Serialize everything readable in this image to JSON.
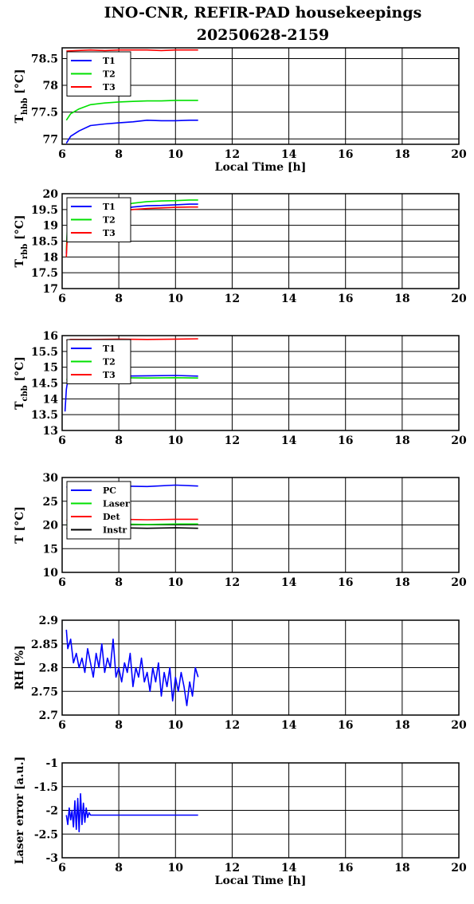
{
  "figure": {
    "title_line1": "INO-CNR, REFIR-PAD housekeepings",
    "title_line2": "20250628-2159"
  },
  "colors": {
    "blue": "#0000ff",
    "green": "#00e000",
    "red": "#ff0000",
    "black": "#000000"
  },
  "chart_data": [
    {
      "id": "thbb",
      "type": "line",
      "xlim": [
        6,
        20
      ],
      "xticks": [
        6,
        8,
        10,
        12,
        14,
        16,
        18,
        20
      ],
      "xlabel": "Local Time [h]",
      "ylabel": "T",
      "ylabel_sub": "hbb",
      "ylabel_unit": "[°C]",
      "ylim": [
        76.9,
        78.7
      ],
      "yticks": [
        77,
        77.5,
        78,
        78.5
      ],
      "grid": true,
      "legend": "top-left",
      "series": [
        {
          "name": "T1",
          "color": "#0000ff",
          "x": [
            6.15,
            6.3,
            6.6,
            7.0,
            7.5,
            8.0,
            8.5,
            9.0,
            9.5,
            10.0,
            10.5,
            10.8
          ],
          "y": [
            76.92,
            77.05,
            77.15,
            77.25,
            77.28,
            77.3,
            77.32,
            77.35,
            77.34,
            77.34,
            77.35,
            77.35
          ]
        },
        {
          "name": "T2",
          "color": "#00e000",
          "x": [
            6.15,
            6.3,
            6.6,
            7.0,
            7.5,
            8.0,
            8.5,
            9.0,
            9.5,
            10.0,
            10.5,
            10.8
          ],
          "y": [
            77.35,
            77.47,
            77.56,
            77.64,
            77.67,
            77.69,
            77.7,
            77.71,
            77.71,
            77.72,
            77.72,
            77.72
          ]
        },
        {
          "name": "T3",
          "color": "#ff0000",
          "x": [
            6.15,
            6.5,
            7.0,
            7.5,
            8.0,
            8.5,
            9.0,
            9.5,
            10.0,
            10.5,
            10.8
          ],
          "y": [
            78.64,
            78.65,
            78.66,
            78.65,
            78.66,
            78.66,
            78.66,
            78.65,
            78.66,
            78.66,
            78.66
          ]
        }
      ]
    },
    {
      "id": "trbb",
      "type": "line",
      "xlim": [
        6,
        20
      ],
      "xticks": [
        6,
        8,
        10,
        12,
        14,
        16,
        18,
        20
      ],
      "xlabel": "",
      "ylabel": "T",
      "ylabel_sub": "rbb",
      "ylabel_unit": "[°C]",
      "ylim": [
        17,
        20
      ],
      "yticks": [
        17,
        17.5,
        18,
        18.5,
        19,
        19.5,
        20
      ],
      "grid": true,
      "legend": "top-left",
      "series": [
        {
          "name": "T1",
          "color": "#0000ff",
          "x": [
            6.15,
            6.2,
            6.5,
            7.0,
            7.5,
            8.0,
            8.5,
            9.0,
            9.5,
            10.0,
            10.5,
            10.8
          ],
          "y": [
            18.1,
            19.2,
            19.3,
            19.4,
            19.45,
            19.5,
            19.58,
            19.62,
            19.63,
            19.65,
            19.67,
            19.67
          ]
        },
        {
          "name": "T2",
          "color": "#00e000",
          "x": [
            6.15,
            6.2,
            6.5,
            7.0,
            7.5,
            8.0,
            8.5,
            9.0,
            9.5,
            10.0,
            10.5,
            10.8
          ],
          "y": [
            18.2,
            19.3,
            19.4,
            19.5,
            19.55,
            19.6,
            19.7,
            19.75,
            19.77,
            19.78,
            19.8,
            19.8
          ]
        },
        {
          "name": "T3",
          "color": "#ff0000",
          "x": [
            6.15,
            6.2,
            6.5,
            7.0,
            7.5,
            8.0,
            8.5,
            9.0,
            9.5,
            10.0,
            10.5,
            10.8
          ],
          "y": [
            18.0,
            19.1,
            19.25,
            19.35,
            19.4,
            19.45,
            19.5,
            19.53,
            19.55,
            19.57,
            19.58,
            19.58
          ]
        }
      ]
    },
    {
      "id": "tcbb",
      "type": "line",
      "xlim": [
        6,
        20
      ],
      "xticks": [
        6,
        8,
        10,
        12,
        14,
        16,
        18,
        20
      ],
      "xlabel": "",
      "ylabel": "T",
      "ylabel_sub": "cbb",
      "ylabel_unit": "[°C]",
      "ylim": [
        13,
        16
      ],
      "yticks": [
        13,
        13.5,
        14,
        14.5,
        15,
        15.5,
        16
      ],
      "grid": true,
      "legend": "top-left",
      "series": [
        {
          "name": "T1",
          "color": "#0000ff",
          "x": [
            6.1,
            6.15,
            6.2,
            6.3,
            7.0,
            8.0,
            9.0,
            10.0,
            10.8
          ],
          "y": [
            13.6,
            14.3,
            14.6,
            14.7,
            14.72,
            14.72,
            14.73,
            14.74,
            14.72
          ]
        },
        {
          "name": "T2",
          "color": "#00e000",
          "x": [
            6.15,
            6.3,
            7.0,
            8.0,
            9.0,
            10.0,
            10.8
          ],
          "y": [
            14.6,
            14.68,
            14.68,
            14.67,
            14.66,
            14.67,
            14.66
          ]
        },
        {
          "name": "T3",
          "color": "#ff0000",
          "x": [
            6.15,
            6.3,
            7.0,
            8.0,
            9.0,
            10.0,
            10.8
          ],
          "y": [
            15.85,
            15.88,
            15.88,
            15.89,
            15.88,
            15.89,
            15.9
          ]
        }
      ]
    },
    {
      "id": "tinst",
      "type": "line",
      "xlim": [
        6,
        20
      ],
      "xticks": [
        6,
        8,
        10,
        12,
        14,
        16,
        18,
        20
      ],
      "xlabel": "",
      "ylabel": "T [°C]",
      "ylabel_sub": "",
      "ylabel_unit": "",
      "ylim": [
        10,
        30
      ],
      "yticks": [
        10,
        15,
        20,
        25,
        30
      ],
      "grid": true,
      "legend": "top-left",
      "series": [
        {
          "name": "PC",
          "color": "#0000ff",
          "x": [
            6.15,
            7.0,
            8.0,
            9.0,
            10.0,
            10.8
          ],
          "y": [
            28.0,
            28.2,
            28.2,
            28.1,
            28.4,
            28.2
          ]
        },
        {
          "name": "Laser",
          "color": "#00e000",
          "x": [
            6.15,
            7.0,
            8.0,
            9.0,
            10.0,
            10.8
          ],
          "y": [
            20.0,
            20.1,
            20.2,
            20.1,
            20.2,
            20.2
          ]
        },
        {
          "name": "Det",
          "color": "#ff0000",
          "x": [
            6.15,
            7.0,
            8.0,
            9.0,
            10.0,
            10.8
          ],
          "y": [
            21.0,
            21.1,
            21.2,
            21.1,
            21.2,
            21.2
          ]
        },
        {
          "name": "Instr",
          "color": "#000000",
          "x": [
            6.15,
            7.0,
            8.0,
            9.0,
            10.0,
            10.8
          ],
          "y": [
            19.2,
            19.3,
            19.4,
            19.3,
            19.4,
            19.3
          ]
        }
      ]
    },
    {
      "id": "rh",
      "type": "line",
      "xlim": [
        6,
        20
      ],
      "xticks": [
        6,
        8,
        10,
        12,
        14,
        16,
        18,
        20
      ],
      "xlabel": "",
      "ylabel": "RH [%]",
      "ylabel_sub": "",
      "ylabel_unit": "",
      "ylim": [
        2.7,
        2.9
      ],
      "yticks": [
        2.7,
        2.75,
        2.8,
        2.85,
        2.9
      ],
      "grid": true,
      "legend": "none",
      "series": [
        {
          "name": "",
          "color": "#0000ff",
          "x": [
            6.15,
            6.2,
            6.3,
            6.4,
            6.5,
            6.6,
            6.7,
            6.8,
            6.9,
            7.0,
            7.1,
            7.2,
            7.3,
            7.4,
            7.5,
            7.6,
            7.7,
            7.8,
            7.9,
            8.0,
            8.1,
            8.2,
            8.3,
            8.4,
            8.5,
            8.6,
            8.7,
            8.8,
            8.9,
            9.0,
            9.1,
            9.2,
            9.3,
            9.4,
            9.5,
            9.6,
            9.7,
            9.8,
            9.9,
            10.0,
            10.1,
            10.2,
            10.3,
            10.4,
            10.5,
            10.6,
            10.7,
            10.8
          ],
          "y": [
            2.88,
            2.84,
            2.86,
            2.81,
            2.83,
            2.8,
            2.82,
            2.79,
            2.84,
            2.81,
            2.78,
            2.83,
            2.8,
            2.85,
            2.79,
            2.82,
            2.8,
            2.86,
            2.78,
            2.8,
            2.77,
            2.81,
            2.79,
            2.83,
            2.76,
            2.8,
            2.78,
            2.82,
            2.77,
            2.79,
            2.75,
            2.8,
            2.77,
            2.81,
            2.74,
            2.79,
            2.76,
            2.8,
            2.73,
            2.78,
            2.75,
            2.79,
            2.76,
            2.72,
            2.77,
            2.74,
            2.8,
            2.78
          ]
        }
      ]
    },
    {
      "id": "laser",
      "type": "line",
      "xlim": [
        6,
        20
      ],
      "xticks": [
        6,
        8,
        10,
        12,
        14,
        16,
        18,
        20
      ],
      "xlabel": "Local Time [h]",
      "ylabel": "Laser error [a.u.]",
      "ylabel_sub": "",
      "ylabel_unit": "",
      "ylim": [
        -3,
        -1
      ],
      "yticks": [
        -3,
        -2.5,
        -2,
        -1.5,
        -1
      ],
      "grid": true,
      "legend": "none",
      "series": [
        {
          "name": "",
          "color": "#0000ff",
          "x": [
            6.15,
            6.2,
            6.25,
            6.3,
            6.35,
            6.4,
            6.45,
            6.5,
            6.55,
            6.6,
            6.65,
            6.7,
            6.75,
            6.8,
            6.85,
            6.9,
            6.95,
            7.0,
            7.5,
            8.0,
            8.5,
            9.0,
            9.5,
            10.0,
            10.5,
            10.8
          ],
          "y": [
            -2.1,
            -2.3,
            -1.95,
            -2.2,
            -2.0,
            -2.35,
            -1.8,
            -2.4,
            -1.75,
            -2.45,
            -1.65,
            -2.3,
            -1.85,
            -2.25,
            -1.95,
            -2.15,
            -2.05,
            -2.1,
            -2.1,
            -2.1,
            -2.1,
            -2.1,
            -2.1,
            -2.1,
            -2.1,
            -2.1
          ]
        }
      ]
    }
  ]
}
